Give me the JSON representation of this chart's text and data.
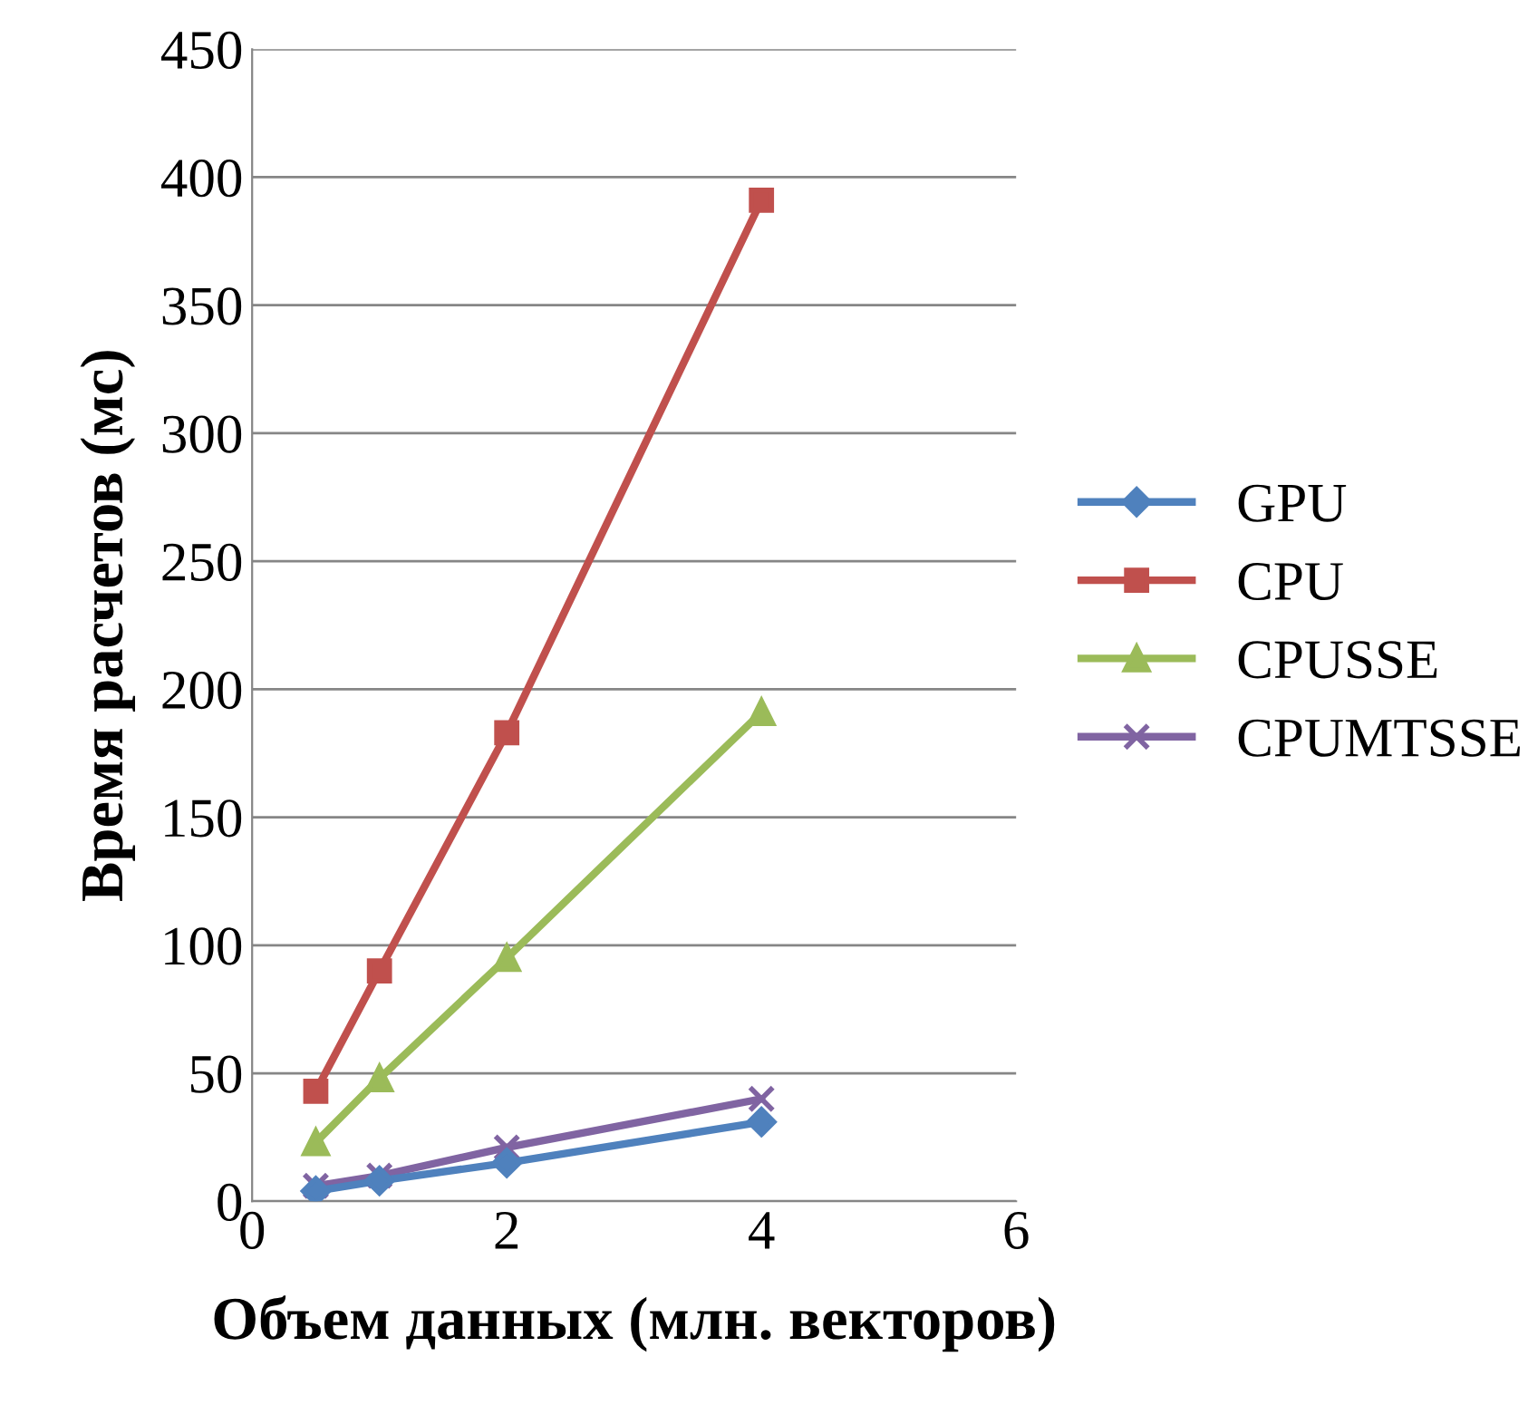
{
  "chart_data": {
    "type": "line",
    "xlabel": "Объем данных (млн. векторов)",
    "ylabel": "Время расчетов (мс)",
    "x": [
      0.5,
      1,
      2,
      4
    ],
    "series": [
      {
        "name": "GPU",
        "color": "#4f81bd",
        "marker": "diamond",
        "values": [
          4,
          8,
          15,
          31
        ]
      },
      {
        "name": "CPU",
        "color": "#c0504d",
        "marker": "square",
        "values": [
          43,
          90,
          183,
          391
        ]
      },
      {
        "name": "CPUSSE",
        "color": "#9bbb59",
        "marker": "triangle",
        "values": [
          23,
          48,
          95,
          191
        ]
      },
      {
        "name": "CPUMTSSE",
        "color": "#8064a2",
        "marker": "cross",
        "values": [
          6,
          10,
          21,
          40
        ]
      }
    ],
    "xlim": [
      0,
      6
    ],
    "xticks": [
      0,
      2,
      4,
      6
    ],
    "ylim": [
      0,
      450
    ],
    "yticks": [
      0,
      50,
      100,
      150,
      200,
      250,
      300,
      350,
      400,
      450
    ],
    "grid": "y",
    "legend": "right",
    "line_style": "solid"
  }
}
